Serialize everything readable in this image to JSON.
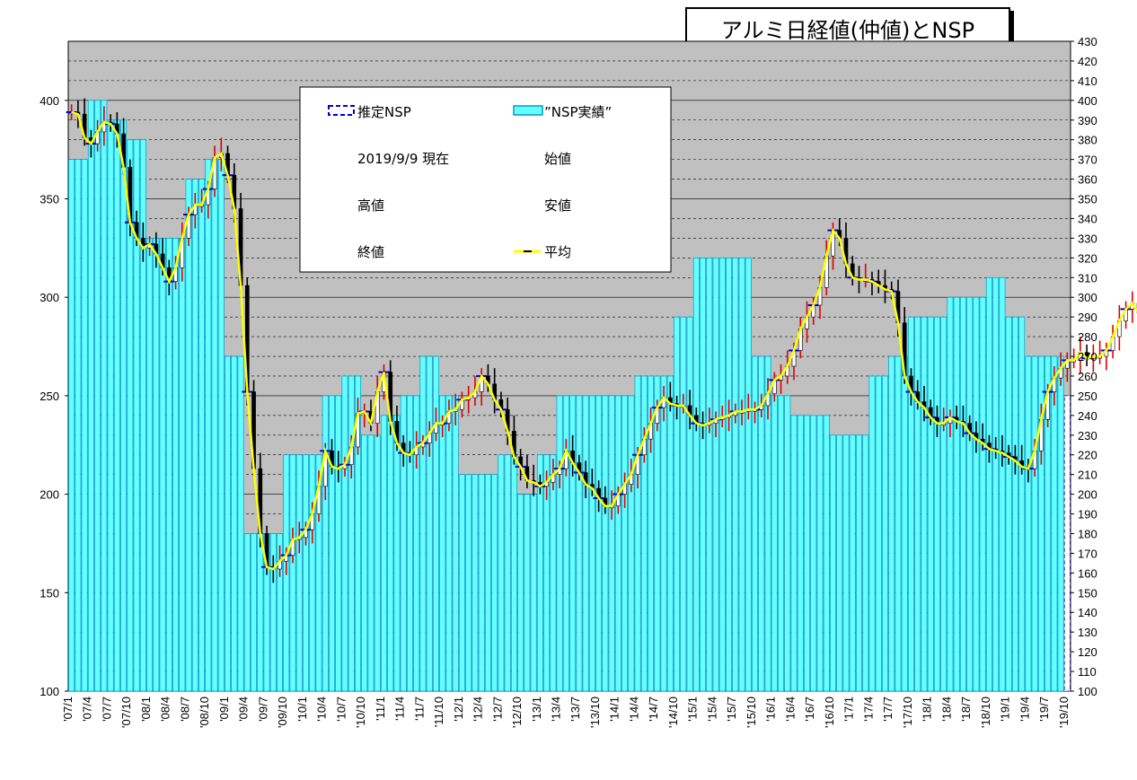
{
  "title": "アルミ日経値(仲値)とNSP",
  "legend": {
    "estimated_nsp": "推定NSP",
    "nsp_actual": "”NSP実績”",
    "as_of": "2019/9/9 現在",
    "open": "始値",
    "high": "高値",
    "low": "安値",
    "close": "終値",
    "average": "平均"
  },
  "colors": {
    "plot_bg": "#c0c0c0",
    "nsp_fill": "#66ffff",
    "nsp_stroke": "#0099cc",
    "rise": "#e00000",
    "fall": "#000000",
    "average": "#ffff00",
    "estimated": "#0000cc"
  },
  "chart_data": {
    "type": "bar",
    "left_axis": {
      "ticks": [
        "100",
        "150",
        "200",
        "250",
        "300",
        "350",
        "400"
      ],
      "min": 100,
      "max": 430
    },
    "right_axis": {
      "ticks": [
        "100",
        "110",
        "120",
        "130",
        "140",
        "150",
        "160",
        "170",
        "180",
        "190",
        "200",
        "210",
        "220",
        "230",
        "240",
        "250",
        "260",
        "270",
        "280",
        "290",
        "300",
        "310",
        "320",
        "330",
        "340",
        "350",
        "360",
        "370",
        "380",
        "390",
        "400",
        "410",
        "420",
        "430"
      ]
    },
    "x_labels": [
      "'07/1",
      "'07/4",
      "'07/7",
      "'07/10",
      "'08/1",
      "'08/4",
      "'08/7",
      "'08/10",
      "'09/1",
      "'09/4",
      "'09/7",
      "'09/10",
      "'10/1",
      "'10/4",
      "'10/7",
      "'10/10",
      "'11/1",
      "'11/4",
      "'11/7",
      "'11/10",
      "'12/1",
      "'12/4",
      "'12/7",
      "'12/10",
      "'13/1",
      "'13/4",
      "'13/7",
      "'13/10",
      "'14/1",
      "'14/4",
      "'14/7",
      "'14/10",
      "'15/1",
      "'15/4",
      "'15/7",
      "'15/10",
      "'16/1",
      "'16/4",
      "'16/7",
      "'16/10",
      "'17/1",
      "'17/4",
      "'17/7",
      "'17/10",
      "'18/1",
      "'18/4",
      "'18/7",
      "'18/10",
      "'19/1",
      "'19/4",
      "'19/7",
      "'19/10"
    ],
    "nsp_quarterly": [
      370,
      400,
      390,
      380,
      330,
      330,
      360,
      370,
      270,
      180,
      180,
      220,
      220,
      250,
      260,
      230,
      240,
      250,
      270,
      250,
      210,
      210,
      220,
      200,
      220,
      250,
      250,
      250,
      250,
      260,
      260,
      290,
      320,
      320,
      320,
      270,
      250,
      240,
      240,
      230,
      230,
      260,
      270,
      290,
      290,
      300,
      300,
      310,
      290,
      270,
      270,
      250
    ],
    "estimated_nsp_start": 51,
    "average_monthly": [
      394,
      393,
      381,
      378,
      384,
      389,
      388,
      383,
      366,
      338,
      330,
      325,
      327,
      322,
      315,
      308,
      315,
      330,
      342,
      347,
      347,
      355,
      371,
      373,
      362,
      345,
      306,
      252,
      213,
      180,
      163,
      162,
      166,
      169,
      177,
      178,
      182,
      190,
      204,
      222,
      214,
      213,
      215,
      224,
      241,
      242,
      236,
      252,
      262,
      237,
      226,
      221,
      220,
      224,
      226,
      231,
      236,
      236,
      242,
      243,
      248,
      249,
      252,
      260,
      256,
      248,
      243,
      232,
      219,
      214,
      207,
      206,
      204,
      206,
      210,
      213,
      222,
      216,
      211,
      205,
      203,
      198,
      194,
      194,
      200,
      205,
      210,
      220,
      228,
      236,
      244,
      249,
      246,
      245,
      245,
      240,
      236,
      235,
      236,
      238,
      239,
      240,
      242,
      242,
      243,
      243,
      245,
      251,
      258,
      260,
      265,
      273,
      284,
      290,
      296,
      305,
      321,
      334,
      330,
      317,
      310,
      309,
      309,
      308,
      306,
      304,
      303,
      287,
      260,
      252,
      247,
      244,
      239,
      236,
      236,
      239,
      237,
      236,
      231,
      228,
      226,
      223,
      222,
      221,
      219,
      217,
      214,
      213,
      222,
      238,
      252,
      259,
      264,
      268,
      268,
      272,
      269,
      270,
      270,
      273,
      280,
      288,
      294,
      297,
      292,
      289,
      290,
      298,
      296,
      285,
      290,
      303,
      313,
      311,
      303,
      296,
      290,
      285,
      288,
      281,
      280,
      272,
      262,
      256,
      257,
      259,
      262,
      263,
      256,
      250,
      247,
      245,
      248,
      244,
      239,
      237
    ]
  }
}
